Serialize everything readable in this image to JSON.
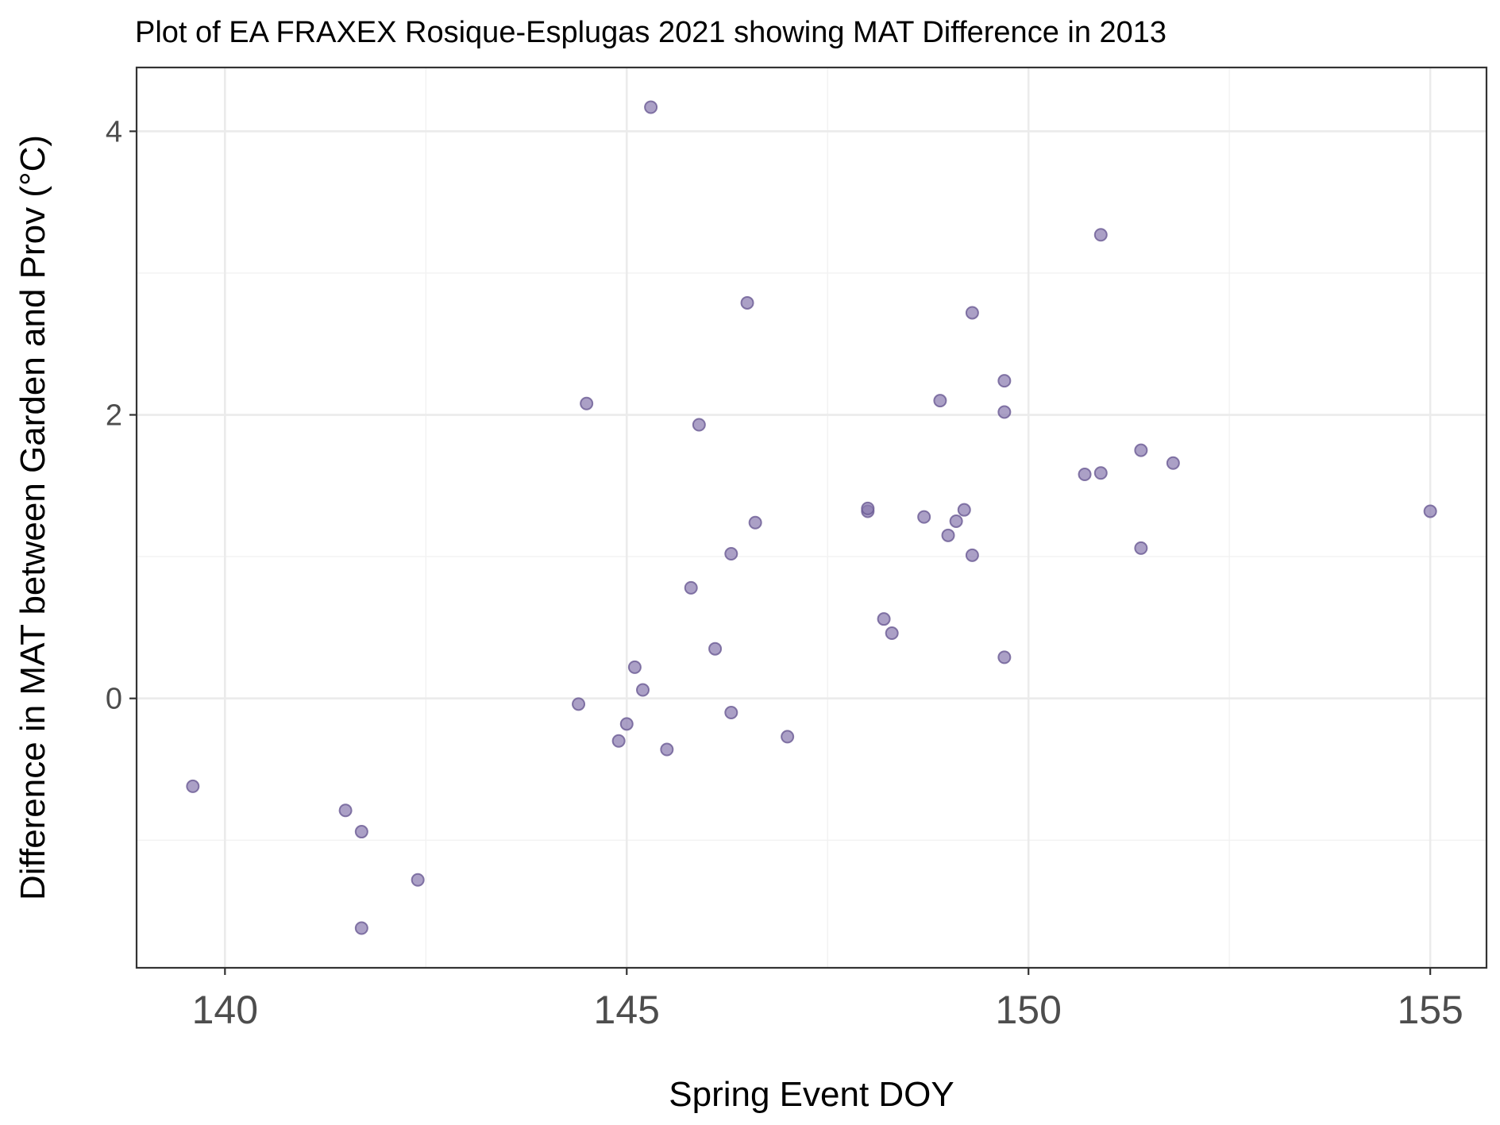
{
  "chart_data": {
    "type": "scatter",
    "title": "Plot of EA FRAXEX Rosique-Esplugas 2021 showing MAT Difference in 2013",
    "xlabel": "Spring Event DOY",
    "ylabel": "Difference in MAT between Garden and Prov (°C)",
    "xlim": [
      138.9,
      155.7
    ],
    "ylim": [
      -1.9,
      4.45
    ],
    "xticks": [
      140,
      145,
      150,
      155
    ],
    "yticks": [
      0,
      2,
      4
    ],
    "xtick_labels": [
      "140",
      "145",
      "150",
      "155"
    ],
    "ytick_labels": [
      "0",
      "2",
      "4"
    ],
    "grid": true,
    "colors": {
      "point_fill": "#8b7bb0",
      "point_stroke": "#6a5a94"
    },
    "points": [
      {
        "x": 139.6,
        "y": -0.62
      },
      {
        "x": 141.5,
        "y": -0.79
      },
      {
        "x": 141.7,
        "y": -0.94
      },
      {
        "x": 141.7,
        "y": -1.62
      },
      {
        "x": 142.4,
        "y": -1.28
      },
      {
        "x": 144.4,
        "y": -0.04
      },
      {
        "x": 144.5,
        "y": 2.08
      },
      {
        "x": 144.9,
        "y": -0.3
      },
      {
        "x": 145.0,
        "y": -0.18
      },
      {
        "x": 145.1,
        "y": 0.22
      },
      {
        "x": 145.2,
        "y": 0.06
      },
      {
        "x": 145.3,
        "y": 4.17
      },
      {
        "x": 145.5,
        "y": -0.36
      },
      {
        "x": 145.8,
        "y": 0.78
      },
      {
        "x": 145.9,
        "y": 1.93
      },
      {
        "x": 146.1,
        "y": 0.35
      },
      {
        "x": 146.3,
        "y": -0.1
      },
      {
        "x": 146.3,
        "y": 1.02
      },
      {
        "x": 146.5,
        "y": 2.79
      },
      {
        "x": 146.6,
        "y": 1.24
      },
      {
        "x": 147.0,
        "y": -0.27
      },
      {
        "x": 148.0,
        "y": 1.32
      },
      {
        "x": 148.0,
        "y": 1.34
      },
      {
        "x": 148.2,
        "y": 0.56
      },
      {
        "x": 148.3,
        "y": 0.46
      },
      {
        "x": 148.7,
        "y": 1.28
      },
      {
        "x": 148.9,
        "y": 2.1
      },
      {
        "x": 149.0,
        "y": 1.15
      },
      {
        "x": 149.1,
        "y": 1.25
      },
      {
        "x": 149.2,
        "y": 1.33
      },
      {
        "x": 149.3,
        "y": 2.72
      },
      {
        "x": 149.3,
        "y": 1.01
      },
      {
        "x": 149.7,
        "y": 2.02
      },
      {
        "x": 149.7,
        "y": 2.24
      },
      {
        "x": 149.7,
        "y": 0.29
      },
      {
        "x": 150.7,
        "y": 1.58
      },
      {
        "x": 150.9,
        "y": 3.27
      },
      {
        "x": 150.9,
        "y": 1.59
      },
      {
        "x": 151.4,
        "y": 1.75
      },
      {
        "x": 151.4,
        "y": 1.06
      },
      {
        "x": 151.8,
        "y": 1.66
      },
      {
        "x": 155.0,
        "y": 1.32
      }
    ]
  }
}
